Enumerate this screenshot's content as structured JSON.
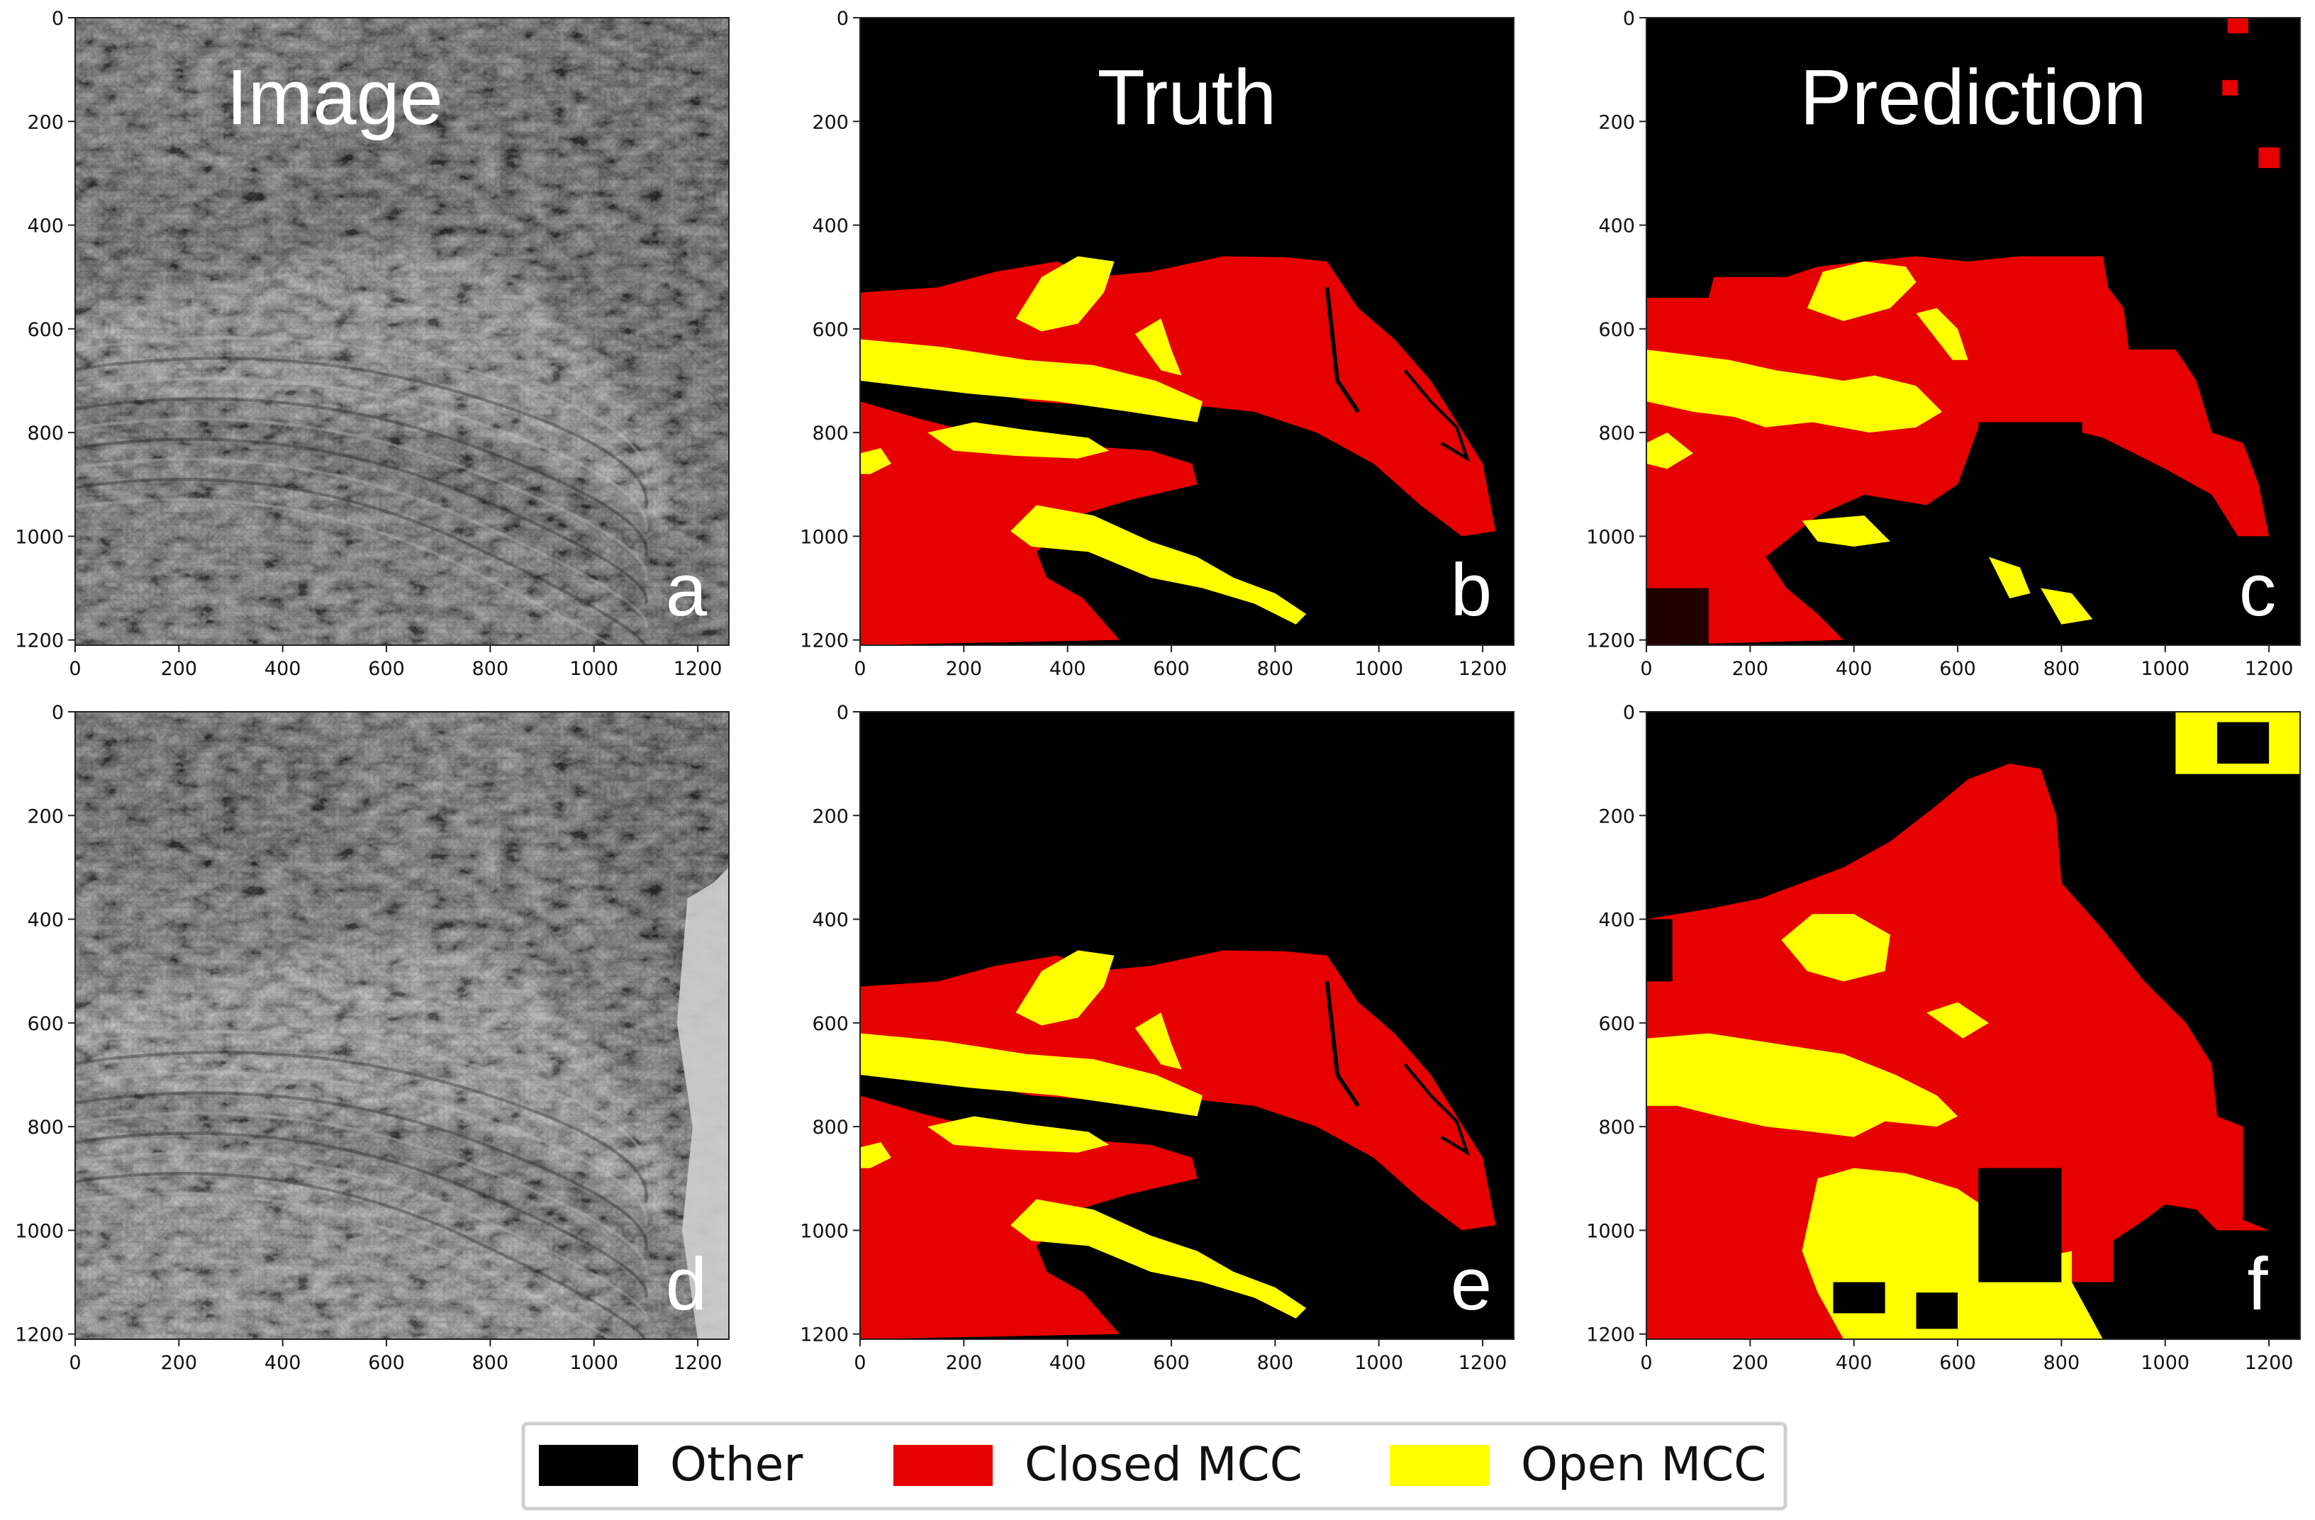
{
  "panels": [
    {
      "id": "a",
      "kind": "image",
      "title": "Image",
      "letter": "a",
      "variant": 1
    },
    {
      "id": "b",
      "kind": "truth",
      "title": "Truth",
      "letter": "b"
    },
    {
      "id": "c",
      "kind": "prediction",
      "title": "Prediction",
      "letter": "c",
      "variant": 1
    },
    {
      "id": "d",
      "kind": "image",
      "title": "",
      "letter": "d",
      "variant": 2
    },
    {
      "id": "e",
      "kind": "truth",
      "title": "",
      "letter": "e"
    },
    {
      "id": "f",
      "kind": "prediction",
      "title": "",
      "letter": "f",
      "variant": 2
    }
  ],
  "axes": {
    "x_ticks": [
      "0",
      "200",
      "400",
      "600",
      "800",
      "1000",
      "1200"
    ],
    "y_ticks": [
      "0",
      "200",
      "400",
      "600",
      "800",
      "1000",
      "1200"
    ],
    "range": [
      0,
      1210
    ]
  },
  "legend": [
    {
      "label": "Other",
      "color": "#000000"
    },
    {
      "label": "Closed MCC",
      "color": "#e60000"
    },
    {
      "label": "Open MCC",
      "color": "#ffff00"
    }
  ]
}
